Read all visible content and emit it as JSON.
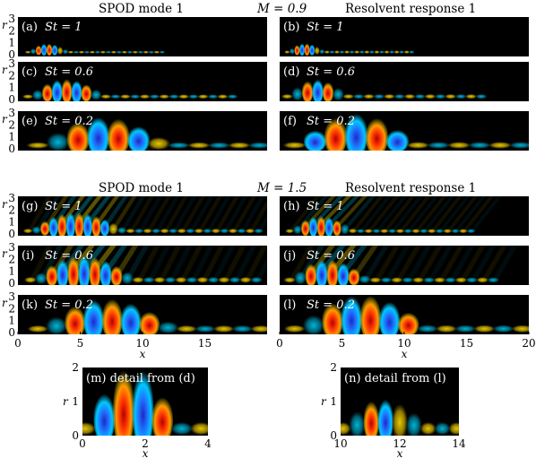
{
  "groups": [
    {
      "id": "top",
      "header": {
        "left": "SPOD mode 1",
        "center": "M = 0.9",
        "right": "Resolvent response 1"
      },
      "panels": [
        {
          "id": "a",
          "label": "(a)",
          "st": "St = 1"
        },
        {
          "id": "b",
          "label": "(b)",
          "st": "St = 1"
        },
        {
          "id": "c",
          "label": "(c)",
          "st": "St = 0.6"
        },
        {
          "id": "d",
          "label": "(d)",
          "st": "St = 0.6"
        },
        {
          "id": "e",
          "label": "(e)",
          "st": "St = 0.2"
        },
        {
          "id": "f",
          "label": "(f)",
          "st": "St = 0.2"
        }
      ]
    },
    {
      "id": "middle",
      "header": {
        "left": "SPOD mode 1",
        "center": "M = 1.5",
        "right": "Resolvent response 1"
      },
      "panels": [
        {
          "id": "g",
          "label": "(g)",
          "st": "St = 1"
        },
        {
          "id": "h",
          "label": "(h)",
          "st": "St = 1"
        },
        {
          "id": "i",
          "label": "(i)",
          "st": "St = 0.6"
        },
        {
          "id": "j",
          "label": "(j)",
          "st": "St = 0.6"
        },
        {
          "id": "k",
          "label": "(k)",
          "st": "St = 0.2"
        },
        {
          "id": "l",
          "label": "(l)",
          "st": "St = 0.2"
        }
      ]
    }
  ],
  "details": [
    {
      "id": "m",
      "label": "(m) detail from (d)",
      "x_ticks": [
        "0",
        "2",
        "4"
      ],
      "y_ticks": [
        "0",
        "1",
        "2"
      ]
    },
    {
      "id": "n",
      "label": "(n) detail from (l)",
      "x_ticks": [
        "10",
        "12",
        "14"
      ],
      "y_ticks": [
        "0",
        "1",
        "2"
      ]
    }
  ],
  "axes": {
    "x_label": "x",
    "y_label": "r",
    "y_ticks": [
      "3",
      "2",
      "1",
      "0"
    ],
    "x_ticks_left": [
      "0",
      "5",
      "10",
      "15"
    ],
    "x_ticks_right": [
      "0",
      "5",
      "10",
      "15",
      "20"
    ]
  },
  "colors": {
    "background": "#000000",
    "positive_strong": "#b40000",
    "positive_mid": "#ff8c00",
    "positive_weak": "#e6d200",
    "negative_strong": "#1e28c8",
    "negative_mid": "#00c8ff",
    "label_text": "#ffffff"
  }
}
